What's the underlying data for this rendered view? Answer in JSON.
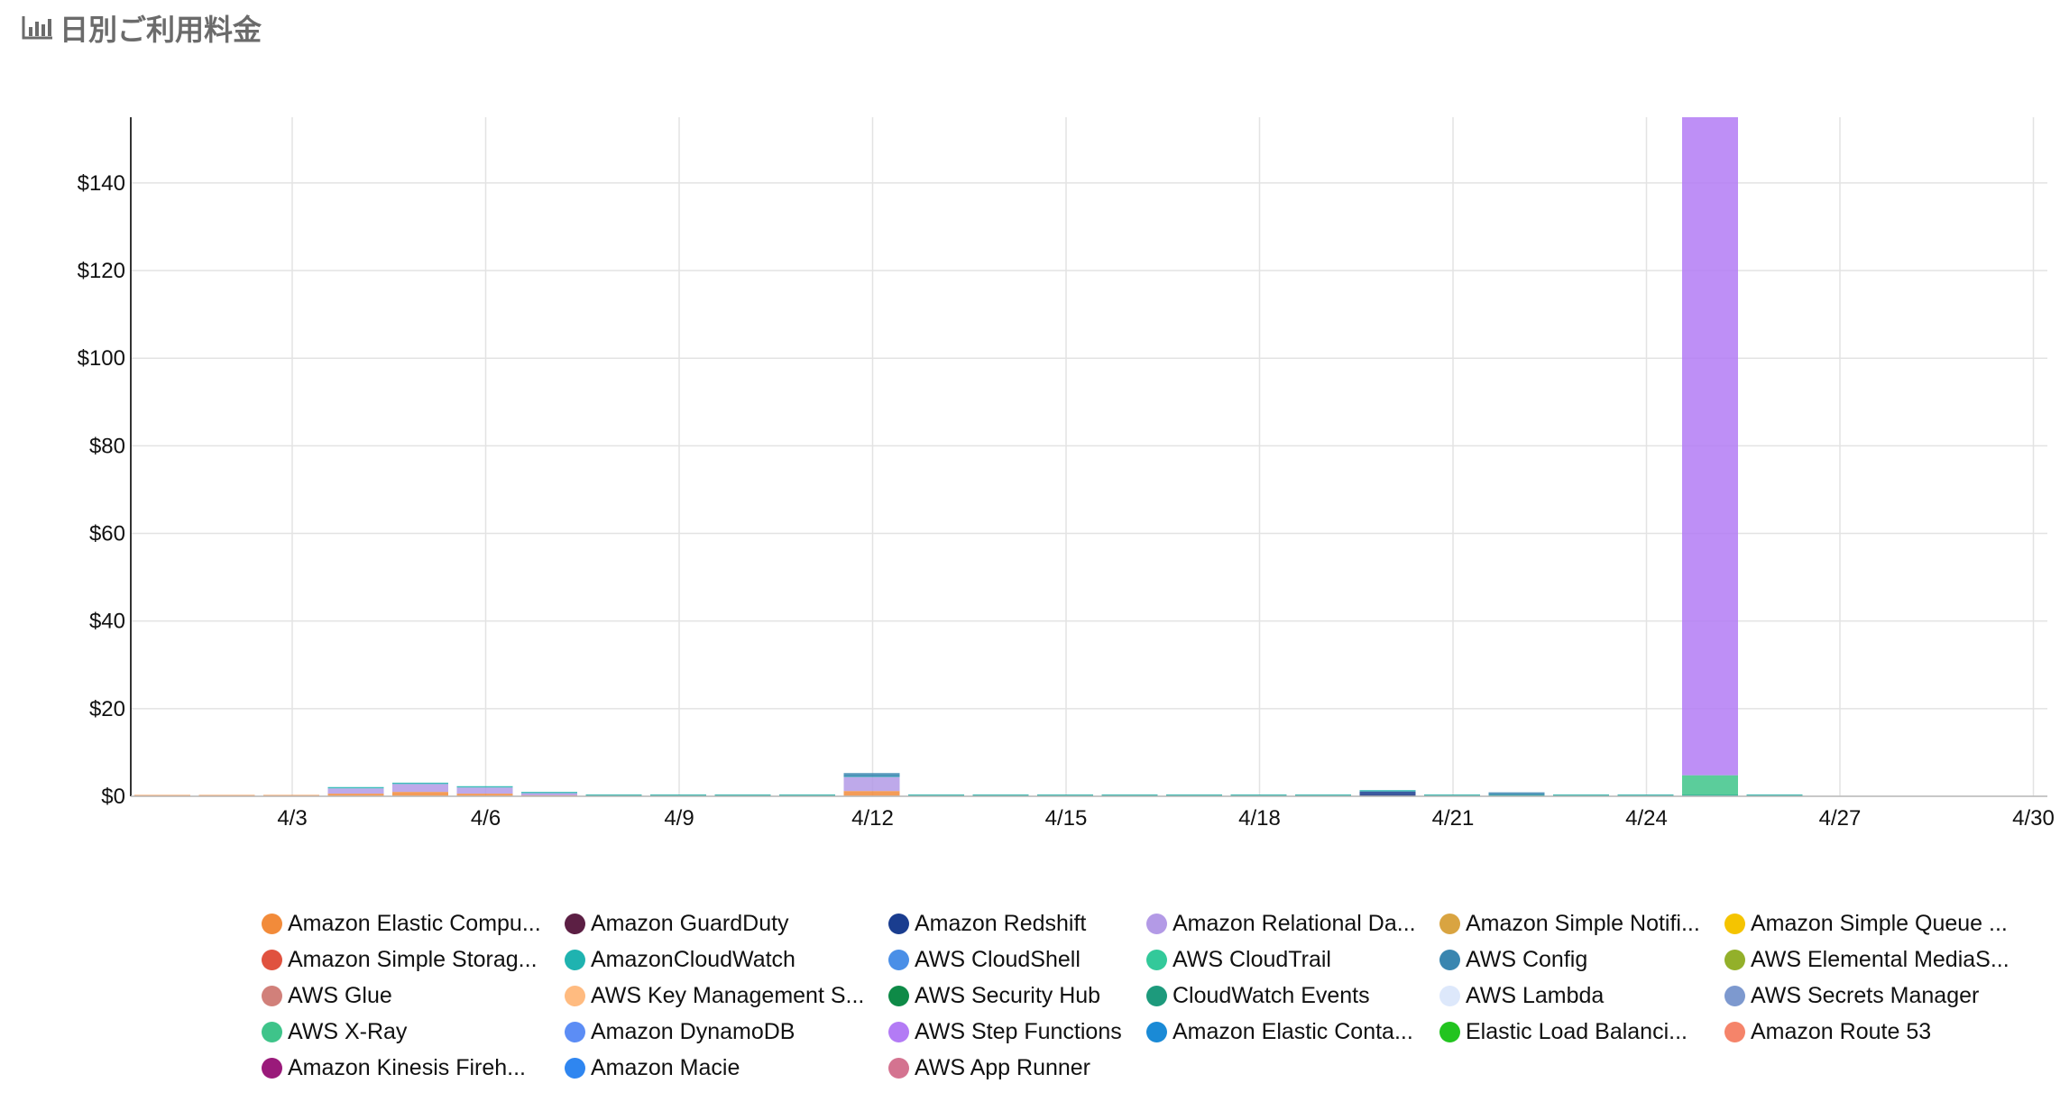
{
  "header": {
    "title": "日別ご利用料金",
    "icon": "bar-chart-icon"
  },
  "chart_data": {
    "type": "bar",
    "stacked": true,
    "title": "",
    "xlabel": "",
    "ylabel": "",
    "ylim": [
      0,
      155
    ],
    "grid": true,
    "legend_position": "bottom",
    "x": [
      "4/1",
      "4/2",
      "4/3",
      "4/4",
      "4/5",
      "4/6",
      "4/7",
      "4/8",
      "4/9",
      "4/10",
      "4/11",
      "4/12",
      "4/13",
      "4/14",
      "4/15",
      "4/16",
      "4/17",
      "4/18",
      "4/19",
      "4/20",
      "4/21",
      "4/22",
      "4/23",
      "4/24",
      "4/25",
      "4/26",
      "4/27",
      "4/28",
      "4/29",
      "4/30"
    ],
    "x_ticks": [
      "4/3",
      "4/6",
      "4/9",
      "4/12",
      "4/15",
      "4/18",
      "4/21",
      "4/24",
      "4/27",
      "4/30"
    ],
    "y_ticks": [
      {
        "value": 0,
        "label": "$0"
      },
      {
        "value": 20,
        "label": "$20"
      },
      {
        "value": 40,
        "label": "$40"
      },
      {
        "value": 60,
        "label": "$60"
      },
      {
        "value": 80,
        "label": "$80"
      },
      {
        "value": 100,
        "label": "$100"
      },
      {
        "value": 120,
        "label": "$120"
      },
      {
        "value": 140,
        "label": "$140"
      }
    ],
    "series": [
      {
        "name": "Amazon Elastic Compu...",
        "color": "#f28b3a",
        "values": [
          0.1,
          0.1,
          0.1,
          0.6,
          1.0,
          0.6,
          0.2,
          0.1,
          0.1,
          0.1,
          0.1,
          1.2,
          0.1,
          0.1,
          0.1,
          0.1,
          0.1,
          0.1,
          0.1,
          0.1,
          0.1,
          0.1,
          0.1,
          0.1,
          0.1,
          0.1,
          0,
          0,
          0,
          0
        ]
      },
      {
        "name": "Amazon GuardDuty",
        "color": "#5c1f44",
        "values": [
          0,
          0,
          0,
          0,
          0,
          0,
          0,
          0,
          0,
          0,
          0,
          0,
          0,
          0,
          0,
          0,
          0,
          0,
          0,
          0,
          0,
          0,
          0,
          0,
          0,
          0,
          0,
          0,
          0,
          0
        ]
      },
      {
        "name": "Amazon Redshift",
        "color": "#1a3d8f",
        "values": [
          0,
          0,
          0,
          0,
          0,
          0,
          0,
          0,
          0,
          0,
          0,
          0,
          0,
          0,
          0,
          0,
          0,
          0,
          0,
          1.0,
          0,
          0,
          0,
          0,
          0,
          0,
          0,
          0,
          0,
          0
        ]
      },
      {
        "name": "Amazon Relational Da...",
        "color": "#b39ae6",
        "values": [
          0,
          0,
          0,
          1.2,
          1.8,
          1.4,
          0.5,
          0,
          0,
          0,
          0,
          3.2,
          0,
          0,
          0,
          0,
          0,
          0,
          0,
          0,
          0,
          0,
          0,
          0,
          0,
          0,
          0,
          0,
          0,
          0
        ]
      },
      {
        "name": "Amazon Simple Notifi...",
        "color": "#d9a441",
        "values": [
          0,
          0,
          0,
          0,
          0,
          0,
          0,
          0,
          0,
          0,
          0,
          0,
          0,
          0,
          0,
          0,
          0,
          0,
          0,
          0,
          0,
          0,
          0,
          0,
          0,
          0,
          0,
          0,
          0,
          0
        ]
      },
      {
        "name": "Amazon Simple Queue ...",
        "color": "#f5c400",
        "values": [
          0,
          0,
          0,
          0,
          0,
          0,
          0,
          0,
          0,
          0,
          0,
          0,
          0,
          0,
          0,
          0,
          0,
          0,
          0,
          0,
          0,
          0,
          0,
          0,
          0,
          0,
          0,
          0,
          0,
          0
        ]
      },
      {
        "name": "Amazon Simple Storag...",
        "color": "#e0523f",
        "values": [
          0,
          0,
          0,
          0,
          0,
          0,
          0,
          0,
          0,
          0,
          0,
          0,
          0,
          0,
          0,
          0,
          0,
          0,
          0,
          0,
          0,
          0,
          0,
          0,
          0,
          0,
          0,
          0,
          0,
          0
        ]
      },
      {
        "name": "AmazonCloudWatch",
        "color": "#1fb3b0",
        "values": [
          0,
          0,
          0,
          0.1,
          0.1,
          0.1,
          0.1,
          0.2,
          0.2,
          0.2,
          0.2,
          0.1,
          0.2,
          0.2,
          0.2,
          0.2,
          0.2,
          0.2,
          0.2,
          0.1,
          0.2,
          0.2,
          0.2,
          0.2,
          0.2,
          0.1,
          0,
          0,
          0,
          0
        ]
      },
      {
        "name": "AWS CloudShell",
        "color": "#4a8fe7",
        "values": [
          0,
          0,
          0,
          0,
          0,
          0,
          0,
          0,
          0,
          0,
          0,
          0,
          0,
          0,
          0,
          0,
          0,
          0,
          0,
          0,
          0,
          0,
          0,
          0,
          0,
          0,
          0,
          0,
          0,
          0
        ]
      },
      {
        "name": "AWS CloudTrail",
        "color": "#33c99a",
        "values": [
          0,
          0,
          0,
          0,
          0,
          0,
          0,
          0,
          0,
          0,
          0,
          0,
          0,
          0,
          0,
          0,
          0,
          0,
          0,
          0,
          0,
          0,
          0,
          0,
          0,
          0,
          0,
          0,
          0,
          0
        ]
      },
      {
        "name": "AWS Config",
        "color": "#3a86b0",
        "values": [
          0,
          0,
          0,
          0,
          0,
          0,
          0,
          0,
          0,
          0,
          0,
          0.8,
          0,
          0,
          0,
          0,
          0,
          0,
          0,
          0,
          0,
          0.6,
          0,
          0,
          0,
          0,
          0,
          0,
          0,
          0
        ]
      },
      {
        "name": "AWS Elemental MediaS...",
        "color": "#93b02a",
        "values": [
          0,
          0,
          0,
          0,
          0,
          0,
          0,
          0,
          0,
          0,
          0,
          0,
          0,
          0,
          0,
          0,
          0,
          0,
          0,
          0,
          0,
          0,
          0,
          0,
          0,
          0,
          0,
          0,
          0,
          0
        ]
      },
      {
        "name": "AWS Glue",
        "color": "#d1807a",
        "values": [
          0,
          0,
          0,
          0,
          0,
          0,
          0,
          0,
          0,
          0,
          0,
          0,
          0,
          0,
          0,
          0,
          0,
          0,
          0,
          0,
          0,
          0,
          0,
          0,
          0,
          0,
          0,
          0,
          0,
          0
        ]
      },
      {
        "name": "AWS Key Management S...",
        "color": "#ffbb80",
        "values": [
          0,
          0,
          0,
          0,
          0,
          0,
          0,
          0,
          0,
          0,
          0,
          0,
          0,
          0,
          0,
          0,
          0,
          0,
          0,
          0,
          0,
          0,
          0,
          0,
          0,
          0,
          0,
          0,
          0,
          0
        ]
      },
      {
        "name": "AWS Security Hub",
        "color": "#0e8a47",
        "values": [
          0,
          0,
          0,
          0,
          0,
          0,
          0,
          0,
          0,
          0,
          0,
          0,
          0,
          0,
          0,
          0,
          0,
          0,
          0,
          0,
          0,
          0,
          0,
          0,
          0,
          0,
          0,
          0,
          0,
          0
        ]
      },
      {
        "name": "CloudWatch Events",
        "color": "#1d9a7c",
        "values": [
          0,
          0,
          0,
          0,
          0,
          0,
          0,
          0,
          0,
          0,
          0,
          0,
          0,
          0,
          0,
          0,
          0,
          0,
          0,
          0,
          0,
          0,
          0,
          0,
          0,
          0,
          0,
          0,
          0,
          0
        ]
      },
      {
        "name": "AWS Lambda",
        "color": "#dde8fb",
        "values": [
          0,
          0,
          0,
          0,
          0,
          0,
          0,
          0,
          0,
          0,
          0,
          0,
          0,
          0,
          0,
          0,
          0,
          0,
          0,
          0,
          0,
          0,
          0,
          0,
          0,
          0,
          0,
          0,
          0,
          0
        ]
      },
      {
        "name": "AWS Secrets Manager",
        "color": "#7d99cf",
        "values": [
          0,
          0,
          0,
          0,
          0,
          0,
          0,
          0,
          0,
          0,
          0,
          0,
          0,
          0,
          0,
          0,
          0,
          0,
          0,
          0,
          0,
          0,
          0,
          0,
          0,
          0,
          0,
          0,
          0,
          0
        ]
      },
      {
        "name": "AWS X-Ray",
        "color": "#3ec48a",
        "values": [
          0,
          0,
          0,
          0,
          0,
          0,
          0,
          0,
          0,
          0,
          0,
          0,
          0,
          0,
          0,
          0,
          0,
          0,
          0,
          0,
          0,
          0,
          0,
          0,
          4.5,
          0,
          0,
          0,
          0,
          0
        ]
      },
      {
        "name": "Amazon DynamoDB",
        "color": "#5c8df5",
        "values": [
          0,
          0,
          0,
          0,
          0,
          0,
          0,
          0,
          0,
          0,
          0,
          0,
          0,
          0,
          0,
          0,
          0,
          0,
          0,
          0,
          0,
          0,
          0,
          0,
          0,
          0,
          0,
          0,
          0,
          0
        ]
      },
      {
        "name": "AWS Step Functions",
        "color": "#b37bf5",
        "values": [
          0,
          0,
          0,
          0,
          0,
          0,
          0,
          0,
          0,
          0,
          0,
          0,
          0,
          0,
          0,
          0,
          0,
          0,
          0,
          0,
          0,
          0,
          0,
          0,
          150.5,
          0,
          0,
          0,
          0,
          0
        ]
      },
      {
        "name": "Amazon Elastic Conta...",
        "color": "#1a8ad6",
        "values": [
          0,
          0,
          0,
          0,
          0,
          0,
          0,
          0,
          0,
          0,
          0,
          0,
          0,
          0,
          0,
          0,
          0,
          0,
          0,
          0,
          0,
          0,
          0,
          0,
          0,
          0,
          0,
          0,
          0,
          0
        ]
      },
      {
        "name": "Elastic Load Balanci...",
        "color": "#22c41f",
        "values": [
          0,
          0,
          0,
          0,
          0,
          0,
          0,
          0,
          0,
          0,
          0,
          0,
          0,
          0,
          0,
          0,
          0,
          0,
          0,
          0,
          0,
          0,
          0,
          0,
          0,
          0,
          0,
          0,
          0,
          0
        ]
      },
      {
        "name": "Amazon Route 53",
        "color": "#f5846a",
        "values": [
          0,
          0,
          0,
          0,
          0,
          0,
          0,
          0,
          0,
          0,
          0,
          0,
          0,
          0,
          0,
          0,
          0,
          0,
          0,
          0,
          0,
          0,
          0,
          0,
          0,
          0,
          0,
          0,
          0,
          0
        ]
      },
      {
        "name": "Amazon Kinesis Fireh...",
        "color": "#9a1a7a",
        "values": [
          0,
          0,
          0,
          0,
          0,
          0,
          0,
          0,
          0,
          0,
          0,
          0,
          0,
          0,
          0,
          0,
          0,
          0,
          0,
          0,
          0,
          0,
          0,
          0,
          0,
          0,
          0,
          0,
          0,
          0
        ]
      },
      {
        "name": "Amazon Macie",
        "color": "#2f86f0",
        "values": [
          0,
          0,
          0,
          0,
          0,
          0,
          0,
          0,
          0,
          0,
          0,
          0,
          0,
          0,
          0,
          0,
          0,
          0,
          0,
          0,
          0,
          0,
          0,
          0,
          0,
          0,
          0,
          0,
          0,
          0
        ]
      },
      {
        "name": "AWS App Runner",
        "color": "#d47390",
        "values": [
          0,
          0,
          0,
          0,
          0,
          0,
          0,
          0,
          0,
          0,
          0,
          0,
          0,
          0,
          0,
          0,
          0,
          0,
          0,
          0,
          0,
          0,
          0,
          0,
          0,
          0,
          0,
          0,
          0,
          0
        ]
      }
    ]
  }
}
